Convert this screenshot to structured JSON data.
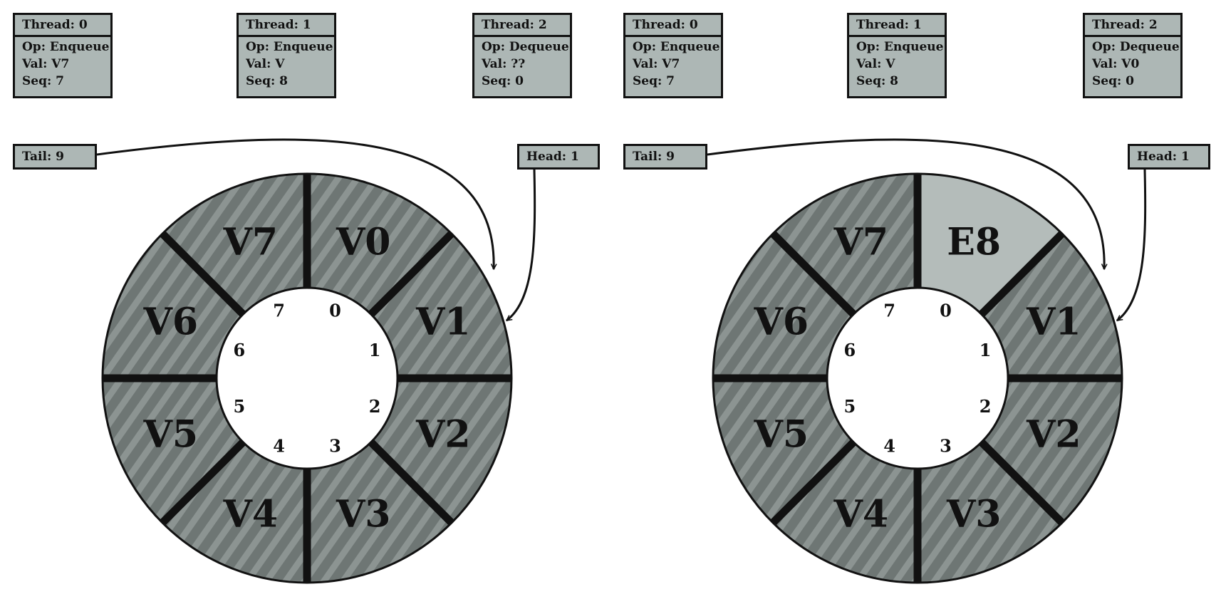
{
  "panels": [
    {
      "threads": [
        {
          "thread": "Thread: 0",
          "op": "Op: Enqueue",
          "val": "Val: V7",
          "seq": "Seq: 7"
        },
        {
          "thread": "Thread: 1",
          "op": "Op: Enqueue",
          "val": "Val: V",
          "seq": "Seq: 8"
        },
        {
          "thread": "Thread: 2",
          "op": "Op: Dequeue",
          "val": "Val: ??",
          "seq": "Seq: 0"
        }
      ],
      "tail": "Tail: 9",
      "head": "Head: 1",
      "slots": [
        {
          "index": "0",
          "value": "V0",
          "state": "filled"
        },
        {
          "index": "1",
          "value": "V1",
          "state": "filled"
        },
        {
          "index": "2",
          "value": "V2",
          "state": "filled"
        },
        {
          "index": "3",
          "value": "V3",
          "state": "filled"
        },
        {
          "index": "4",
          "value": "V4",
          "state": "filled"
        },
        {
          "index": "5",
          "value": "V5",
          "state": "filled"
        },
        {
          "index": "6",
          "value": "V6",
          "state": "filled"
        },
        {
          "index": "7",
          "value": "V7",
          "state": "filled"
        }
      ]
    },
    {
      "threads": [
        {
          "thread": "Thread: 0",
          "op": "Op: Enqueue",
          "val": "Val: V7",
          "seq": "Seq: 7"
        },
        {
          "thread": "Thread: 1",
          "op": "Op: Enqueue",
          "val": "Val: V",
          "seq": "Seq: 8"
        },
        {
          "thread": "Thread: 2",
          "op": "Op: Dequeue",
          "val": "Val: V0",
          "seq": "Seq: 0"
        }
      ],
      "tail": "Tail: 9",
      "head": "Head: 1",
      "slots": [
        {
          "index": "0",
          "value": "E8",
          "state": "empty"
        },
        {
          "index": "1",
          "value": "V1",
          "state": "filled"
        },
        {
          "index": "2",
          "value": "V2",
          "state": "filled"
        },
        {
          "index": "3",
          "value": "V3",
          "state": "filled"
        },
        {
          "index": "4",
          "value": "V4",
          "state": "filled"
        },
        {
          "index": "5",
          "value": "V5",
          "state": "filled"
        },
        {
          "index": "6",
          "value": "V6",
          "state": "filled"
        },
        {
          "index": "7",
          "value": "V7",
          "state": "filled"
        }
      ]
    }
  ],
  "colors": {
    "filled": "#6e7674",
    "filled_stripe": "#8c9492",
    "empty": "#b4bcba",
    "box": "#adb7b5",
    "ink": "#111111"
  }
}
